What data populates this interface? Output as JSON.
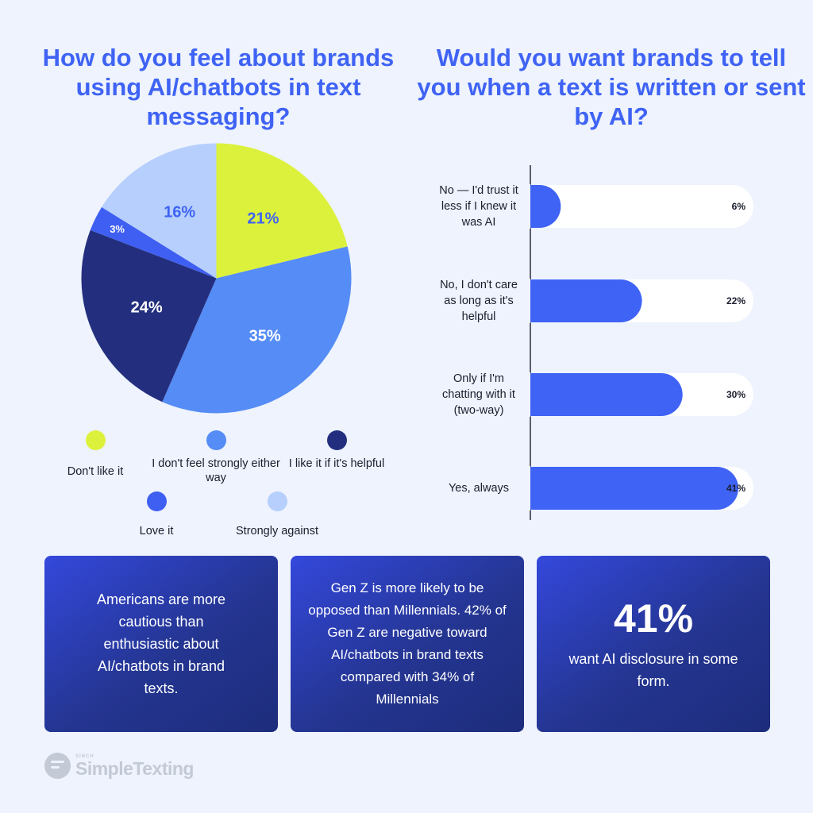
{
  "left_chart": {
    "title": "How do you feel about brands using AI/chatbots in text messaging?"
  },
  "right_chart": {
    "title": "Would you want brands to tell you when a text is written or sent by AI?"
  },
  "cards": [
    {
      "text": "Americans are more cautious than enthusiastic about AI/chatbots in brand texts."
    },
    {
      "text": "Gen Z is more likely to be opposed than Millennials. 42% of Gen Z are negative toward AI/chatbots in brand texts compared with 34% of Millennials"
    },
    {
      "stat": "41%",
      "text": "want AI disclosure in some form."
    }
  ],
  "logo": {
    "small": "SINCH",
    "name": "SimpleTexting"
  },
  "colors": {
    "title": "#3f63f4",
    "bar": "#3f63f4",
    "bar_track": "#ffffff",
    "card": "#243591"
  },
  "chart_data": [
    {
      "type": "pie",
      "title": "How do you feel about brands using AI/chatbots in text messaging?",
      "slices": [
        {
          "label": "Don't like it",
          "value": 21,
          "display": "21%",
          "color": "#dcf13c",
          "text_color": "#3f63f4"
        },
        {
          "label": "I don't feel strongly either way",
          "value": 35,
          "display": "35%",
          "color": "#558cf6",
          "text_color": "#ffffff"
        },
        {
          "label": "I like it if it's helpful",
          "value": 24,
          "display": "24%",
          "color": "#232f7e",
          "text_color": "#ffffff"
        },
        {
          "label": "Love it",
          "value": 3,
          "display": "3%",
          "color": "#3f5ff2",
          "text_color": "#ffffff"
        },
        {
          "label": "Strongly against",
          "value": 16,
          "display": "16%",
          "color": "#b6cffc",
          "text_color": "#3f63f4"
        }
      ],
      "legend": {
        "placement": "bottom"
      }
    },
    {
      "type": "bar",
      "orientation": "horizontal",
      "title": "Would you want brands to tell you when a text is written or sent by AI?",
      "categories": [
        "No — I'd trust it less if I knew it was AI",
        "No, I don't care as long as it's helpful",
        "Only if I'm chatting with it (two-way)",
        "Yes, always"
      ],
      "category_lines": [
        [
          "No — I'd trust it",
          "less if I knew it",
          "was AI"
        ],
        [
          "No, I don't care",
          "as long as it's",
          "helpful"
        ],
        [
          "Only if I'm",
          "chatting with it",
          "(two-way)"
        ],
        [
          "Yes, always"
        ]
      ],
      "values": [
        6,
        22,
        30,
        41
      ],
      "value_labels": [
        "6%",
        "22%",
        "30%",
        "41%"
      ],
      "xlim": [
        0,
        41
      ],
      "grid": false
    }
  ]
}
